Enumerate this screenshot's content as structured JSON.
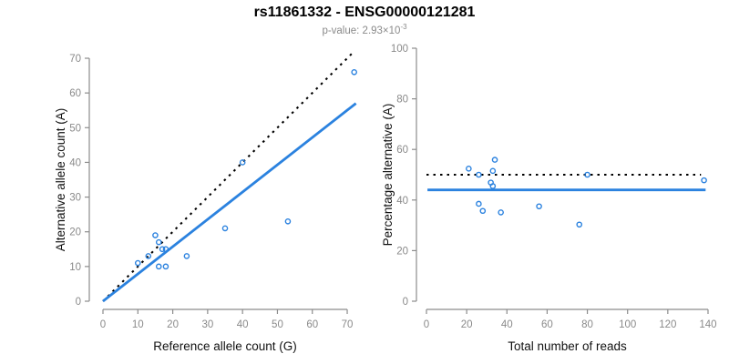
{
  "header": {
    "title": "rs11861332 - ENSG00000121281",
    "pvalue_label": "p-value: ",
    "pvalue_base": "2.93×10",
    "pvalue_exponent": "-3"
  },
  "colors": {
    "accent_blue": "#2B82DF",
    "axis_gray": "#8C8C8C",
    "tick_label_gray": "#8A8A8A",
    "label_black": "#111111",
    "dotted_black": "#000000",
    "background": "#FFFFFF"
  },
  "chart_data": [
    {
      "type": "scatter",
      "name": "allele-counts",
      "xlabel": "Reference allele count (G)",
      "ylabel": "Alternative allele count (A)",
      "xlim": [
        0,
        70
      ],
      "ylim": [
        0,
        70
      ],
      "xticks": [
        0,
        10,
        20,
        30,
        40,
        50,
        60,
        70
      ],
      "yticks": [
        0,
        10,
        20,
        30,
        40,
        50,
        60,
        70
      ],
      "grid": false,
      "marker": "open-circle",
      "points": [
        [
          10,
          11
        ],
        [
          13,
          13
        ],
        [
          15,
          19
        ],
        [
          16,
          17
        ],
        [
          17,
          15
        ],
        [
          18,
          15
        ],
        [
          16,
          10
        ],
        [
          18,
          10
        ],
        [
          24,
          13
        ],
        [
          35,
          21
        ],
        [
          40,
          40
        ],
        [
          53,
          23
        ],
        [
          72,
          66
        ]
      ],
      "lines": [
        {
          "name": "identity-line",
          "style": "dotted",
          "color_key": "dotted_black",
          "x1": 0,
          "y1": 0,
          "x2": 71.8,
          "y2": 71.8
        },
        {
          "name": "fit-line",
          "style": "solid",
          "color_key": "accent_blue",
          "x1": 0,
          "y1": 0,
          "x2": 72.5,
          "y2": 57
        }
      ]
    },
    {
      "type": "scatter",
      "name": "percentage-vs-reads",
      "xlabel": "Total number of reads",
      "ylabel": "Percentage alternative (A)",
      "xlim": [
        0,
        140
      ],
      "ylim": [
        0,
        100
      ],
      "xticks": [
        0,
        20,
        40,
        60,
        80,
        100,
        120,
        140
      ],
      "yticks": [
        0,
        20,
        40,
        60,
        80,
        100
      ],
      "grid": false,
      "marker": "open-circle",
      "points": [
        [
          21,
          52.4
        ],
        [
          26,
          50
        ],
        [
          34,
          55.9
        ],
        [
          33,
          51.5
        ],
        [
          32,
          46.9
        ],
        [
          33,
          45.5
        ],
        [
          26,
          38.5
        ],
        [
          28,
          35.7
        ],
        [
          37,
          35.1
        ],
        [
          56,
          37.5
        ],
        [
          80,
          50
        ],
        [
          76,
          30.3
        ],
        [
          138,
          47.8
        ]
      ],
      "lines": [
        {
          "name": "fifty-percent-line",
          "style": "dotted",
          "color_key": "dotted_black",
          "x1": 0,
          "y1": 50,
          "x2": 136.5,
          "y2": 50
        },
        {
          "name": "fit-line",
          "style": "solid",
          "color_key": "accent_blue",
          "x1": 0.5,
          "y1": 44,
          "x2": 138.8,
          "y2": 44
        }
      ]
    }
  ]
}
